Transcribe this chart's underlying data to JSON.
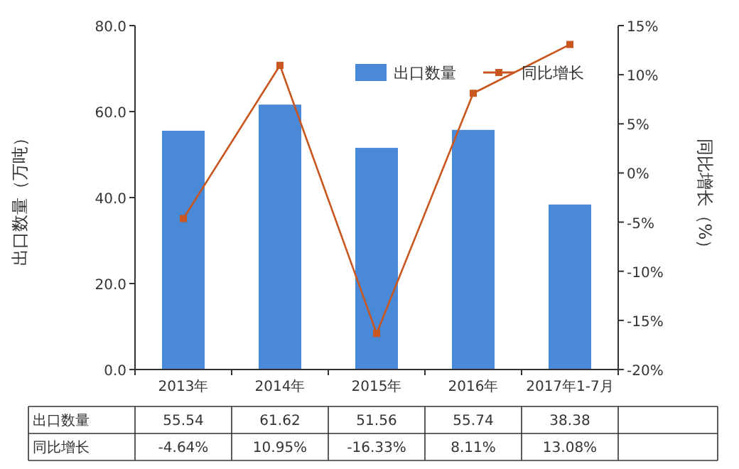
{
  "chart_data": {
    "type": "bar",
    "categories": [
      "2013年",
      "2014年",
      "2015年",
      "2016年",
      "2017年1-7月"
    ],
    "series": [
      {
        "name": "出口数量",
        "color": "#4a88d8",
        "values": [
          55.54,
          61.62,
          51.56,
          55.74,
          38.38
        ],
        "value_labels": [
          "55.54",
          "61.62",
          "51.56",
          "55.74",
          "38.38"
        ]
      },
      {
        "name": "同比增长",
        "type": "line",
        "axis": "y2",
        "color": "#c8561e",
        "marker": "square",
        "values": [
          -4.64,
          10.95,
          -16.33,
          8.11,
          13.08
        ],
        "value_labels": [
          "-4.64%",
          "10.95%",
          "-16.33%",
          "8.11%",
          "13.08%"
        ]
      }
    ],
    "ylabel": "出口数量（万吨）",
    "y2label": "同比增长（%）",
    "ylim": [
      0,
      80
    ],
    "yticks": [
      {
        "value": 0,
        "label": "0.0"
      },
      {
        "value": 20,
        "label": "20.0"
      },
      {
        "value": 40,
        "label": "40.0"
      },
      {
        "value": 60,
        "label": "60.0"
      },
      {
        "value": 80,
        "label": "80.0"
      }
    ],
    "y2lim": [
      -20,
      15
    ],
    "y2ticks": [
      {
        "value": -20,
        "label": "-20%"
      },
      {
        "value": -15,
        "label": "-15%"
      },
      {
        "value": -10,
        "label": "-10%"
      },
      {
        "value": -5,
        "label": "-5%"
      },
      {
        "value": 0,
        "label": "0%"
      },
      {
        "value": 5,
        "label": "5%"
      },
      {
        "value": 10,
        "label": "10%"
      },
      {
        "value": 15,
        "label": "15%"
      }
    ],
    "legend": "top right"
  }
}
